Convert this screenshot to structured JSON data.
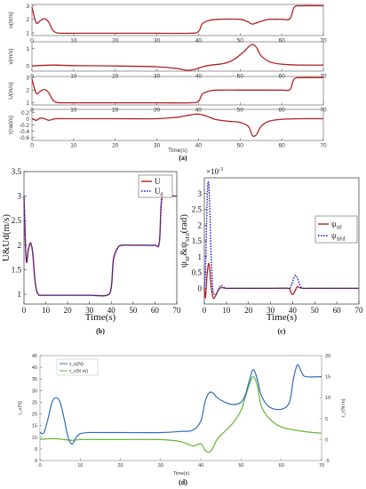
{
  "captions": {
    "a": "(a)",
    "b": "(b)",
    "c": "(c)",
    "d": "(d)"
  },
  "colors": {
    "red": "#b22222",
    "blue": "#1f24b8",
    "dblue": "#2f6db5",
    "green": "#67b437",
    "axis": "#555555"
  },
  "chart_data": [
    {
      "id": "a",
      "type": "line",
      "subplots": [
        {
          "ylabel": "u(m/s)",
          "yticks": [
            1,
            2,
            3
          ],
          "ylim": [
            0.8,
            3.1
          ],
          "x": [
            0,
            1,
            2,
            3,
            4,
            5,
            6,
            8,
            10,
            20,
            30,
            38,
            40,
            41,
            43,
            45,
            50,
            52,
            53,
            55,
            57,
            60,
            62,
            63,
            65,
            70
          ],
          "y": [
            2.9,
            1.75,
            1.9,
            2.05,
            1.8,
            1.2,
            1.0,
            0.97,
            0.97,
            0.97,
            0.97,
            0.97,
            1.1,
            1.7,
            1.95,
            2.0,
            2.0,
            1.8,
            1.65,
            1.85,
            2.0,
            2.0,
            2.05,
            2.9,
            3.0,
            3.0
          ]
        },
        {
          "ylabel": "v(m/s)",
          "yticks": [
            0,
            1
          ],
          "ylim": [
            -0.3,
            1.4
          ],
          "x": [
            0,
            5,
            10,
            20,
            30,
            35,
            37,
            39,
            41,
            43,
            45,
            47,
            49,
            51,
            52,
            53,
            54,
            55,
            57,
            60,
            65,
            70
          ],
          "y": [
            0,
            0.05,
            0.02,
            0.0,
            -0.05,
            -0.15,
            -0.25,
            -0.2,
            -0.05,
            0.05,
            0.1,
            0.2,
            0.45,
            0.85,
            1.1,
            1.25,
            1.05,
            0.6,
            0.25,
            0.1,
            0.05,
            0.05
          ]
        },
        {
          "ylabel": "U(m/s)",
          "yticks": [
            1,
            2,
            3
          ],
          "ylim": [
            0.8,
            3.1
          ],
          "x": [
            0,
            1,
            2,
            3,
            4,
            5,
            6,
            8,
            10,
            20,
            30,
            38,
            40,
            41,
            43,
            45,
            50,
            55,
            60,
            62,
            63,
            65,
            70
          ],
          "y": [
            2.9,
            1.75,
            1.9,
            2.05,
            1.8,
            1.2,
            1.0,
            0.97,
            0.97,
            0.97,
            0.97,
            0.97,
            1.1,
            1.7,
            1.95,
            2.0,
            2.0,
            2.0,
            2.0,
            2.05,
            2.9,
            3.0,
            3.0
          ]
        },
        {
          "ylabel": "r(rad/s)",
          "yticks": [
            -0.6,
            -0.4,
            -0.2,
            0,
            0.2
          ],
          "ylim": [
            -0.7,
            0.3
          ],
          "x": [
            0,
            1,
            2,
            3,
            4,
            5,
            6,
            10,
            20,
            30,
            35,
            38,
            40,
            42,
            44,
            47,
            50,
            52,
            53,
            54,
            55,
            57,
            60,
            65,
            70
          ],
          "y": [
            0.0,
            -0.05,
            0.02,
            0.0,
            -0.05,
            -0.02,
            0.0,
            0.0,
            0.0,
            0.0,
            0.05,
            0.12,
            0.15,
            0.08,
            -0.02,
            -0.08,
            -0.12,
            -0.25,
            -0.55,
            -0.5,
            -0.25,
            -0.08,
            -0.02,
            0.0,
            0.0
          ]
        }
      ],
      "xlabel": "Time(s)",
      "xticks": [
        0,
        10,
        20,
        30,
        40,
        50,
        60,
        70
      ],
      "xlim": [
        0,
        70
      ]
    },
    {
      "id": "b",
      "type": "line",
      "xlabel": "Time(s)",
      "ylabel": "U&Ud(m/s)",
      "xlim": [
        0,
        70
      ],
      "ylim": [
        0.8,
        3.5
      ],
      "xticks": [
        0,
        10,
        20,
        30,
        40,
        50,
        60,
        70
      ],
      "yticks": [
        1,
        1.5,
        2,
        2.5,
        3,
        3.5
      ],
      "legend": {
        "position": "top-right"
      },
      "series": [
        {
          "name": "U",
          "style": "solid",
          "x": [
            0,
            1,
            2,
            3,
            4,
            5,
            6,
            7,
            8,
            10,
            20,
            30,
            38,
            40,
            41,
            43,
            45,
            50,
            55,
            60,
            62,
            63,
            65,
            70
          ],
          "y": [
            3.0,
            1.7,
            1.9,
            2.05,
            1.85,
            1.3,
            1.05,
            0.98,
            0.98,
            0.98,
            0.98,
            0.98,
            0.98,
            1.15,
            1.7,
            1.95,
            2.0,
            2.0,
            2.0,
            2.0,
            2.05,
            2.9,
            3.0,
            3.0
          ]
        },
        {
          "name": "U",
          "sub": "d",
          "style": "dotted",
          "x": [
            0,
            1,
            2,
            3,
            4,
            5,
            6,
            7,
            8,
            10,
            20,
            30,
            38,
            40,
            41,
            43,
            45,
            50,
            55,
            60,
            62,
            63,
            65,
            70
          ],
          "y": [
            3.0,
            1.72,
            1.92,
            2.03,
            1.84,
            1.28,
            1.04,
            0.98,
            0.98,
            0.98,
            0.98,
            0.98,
            0.98,
            1.15,
            1.72,
            1.95,
            2.0,
            2.0,
            2.0,
            2.0,
            2.05,
            2.92,
            3.0,
            3.0
          ]
        }
      ]
    },
    {
      "id": "c",
      "type": "line",
      "xlabel": "Time(s)",
      "ylabel": "ψSF&ψSFd(rad)",
      "ylabel_parts": [
        "ψ",
        "SF",
        "&ψ",
        "SFd",
        "(rad)"
      ],
      "scale_label": "×10",
      "scale_exp": "-3",
      "xlim": [
        0,
        70
      ],
      "ylim": [
        -0.5,
        3.5
      ],
      "xticks": [
        0,
        10,
        20,
        30,
        40,
        50,
        60,
        70
      ],
      "yticks": [
        0,
        0.5,
        1,
        1.5,
        2,
        2.5,
        3
      ],
      "legend": {
        "position": "top-right"
      },
      "series": [
        {
          "name": "ψSF",
          "name_parts": [
            "ψ",
            "SF"
          ],
          "style": "solid",
          "x": [
            0,
            0.5,
            1,
            1.5,
            2,
            2.5,
            3,
            4,
            5,
            6,
            7,
            8,
            10,
            15,
            20,
            30,
            38,
            39,
            40,
            41,
            42,
            43,
            45,
            50,
            55,
            60,
            70
          ],
          "y": [
            0,
            -0.3,
            0.2,
            0.6,
            0.8,
            0.6,
            0.1,
            -0.3,
            -0.25,
            -0.1,
            0.0,
            0.02,
            0.0,
            0.0,
            0.0,
            0.0,
            0.0,
            -0.1,
            -0.2,
            -0.1,
            0.05,
            0.02,
            0.0,
            0.0,
            0.0,
            0.0,
            0.0
          ]
        },
        {
          "name": "ψSFd",
          "name_parts": [
            "ψ",
            "SFd"
          ],
          "style": "dotted",
          "x": [
            0,
            0.5,
            1,
            1.5,
            2,
            2.5,
            3,
            3.5,
            4,
            5,
            6,
            7,
            8,
            9,
            10,
            15,
            20,
            30,
            38,
            39,
            40,
            41,
            42,
            43,
            44,
            45,
            50,
            55,
            60,
            70
          ],
          "y": [
            0,
            0.5,
            2.0,
            3.2,
            3.3,
            2.5,
            1.2,
            0.4,
            -0.1,
            -0.2,
            -0.1,
            0.05,
            0.08,
            0.02,
            0.0,
            0.0,
            0.0,
            0.0,
            0.0,
            0.05,
            0.2,
            0.4,
            0.35,
            0.15,
            0.02,
            0.0,
            0.0,
            0.0,
            0.0,
            0.0
          ]
        }
      ]
    },
    {
      "id": "d",
      "type": "line",
      "xlabel": "Time(s)",
      "ylabel_left": "τ_u(N)",
      "ylabel_right": "τ_r(N·m)",
      "xlim": [
        0,
        70
      ],
      "ylim_left": [
        0,
        45
      ],
      "ylim_right": [
        -5,
        20
      ],
      "xticks": [
        0,
        10,
        20,
        30,
        40,
        50,
        60,
        70
      ],
      "yticks_left": [
        0,
        5,
        10,
        15,
        20,
        25,
        30,
        35,
        40,
        45
      ],
      "yticks_right": [
        -5,
        0,
        5,
        10,
        15,
        20
      ],
      "legend": {
        "position": "top-left"
      },
      "series": [
        {
          "name": "τ_u(N)",
          "axis": "left",
          "color": "blue",
          "x": [
            0,
            1,
            2,
            3,
            4,
            5,
            6,
            7,
            8,
            9,
            10,
            12,
            15,
            20,
            30,
            35,
            38,
            40,
            41,
            42,
            43,
            44,
            46,
            48,
            50,
            51,
            52,
            53,
            54,
            55,
            57,
            60,
            62,
            63,
            64,
            65,
            66,
            70
          ],
          "y": [
            12,
            12,
            18,
            25,
            27,
            25,
            18,
            10,
            7,
            10,
            11.5,
            12,
            12,
            12,
            12,
            12.5,
            13,
            17,
            25,
            29,
            29,
            27,
            25,
            24,
            25,
            28,
            34,
            39,
            35,
            28,
            23,
            22,
            25,
            35,
            41,
            38,
            36,
            36
          ]
        },
        {
          "name": "τ_r(N·m)",
          "axis": "right",
          "color": "green",
          "x": [
            0,
            2,
            4,
            6,
            8,
            10,
            15,
            20,
            30,
            35,
            38,
            40,
            41,
            42,
            43,
            44,
            46,
            48,
            50,
            51,
            52,
            53,
            54,
            55,
            57,
            60,
            65,
            70
          ],
          "y": [
            0,
            0.2,
            0.2,
            0,
            -0.2,
            0,
            0,
            0,
            0,
            -0.5,
            -1.5,
            -1.0,
            -2.5,
            -3.0,
            -2.0,
            0,
            2.0,
            4.0,
            7.0,
            10,
            13,
            15,
            13,
            8,
            5,
            3,
            2,
            1.5
          ]
        }
      ]
    }
  ]
}
